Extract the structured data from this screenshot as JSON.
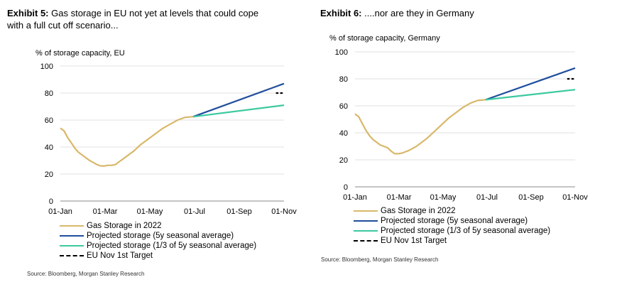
{
  "colors": {
    "gas_storage": "#D8B86A",
    "projected_5y": "#1F4E9C",
    "projected_third": "#3CC9A0",
    "target": "#000000"
  },
  "chart_data": [
    {
      "type": "line",
      "exhibit_label": "Exhibit 5:",
      "title": "Gas storage in EU not yet at levels that could cope with a full cut off scenario...",
      "ylabel": "% of storage capacity, EU",
      "xlabel": "",
      "x_ticks": [
        "01-Jan",
        "01-Mar",
        "01-May",
        "01-Jul",
        "01-Sep",
        "01-Nov"
      ],
      "y_ticks": [
        0,
        20,
        40,
        60,
        80,
        100
      ],
      "xlim": [
        0,
        305
      ],
      "ylim": [
        0,
        100
      ],
      "grid": "horizontal",
      "legend_position": "bottom",
      "series": [
        {
          "name": "Gas Storage in 2022",
          "color_key": "gas_storage",
          "dash": false,
          "x": [
            0,
            5,
            10,
            15,
            20,
            25,
            30,
            35,
            40,
            45,
            50,
            55,
            60,
            65,
            70,
            75,
            80,
            85,
            90,
            95,
            100,
            110,
            120,
            130,
            140,
            150,
            160,
            170,
            181
          ],
          "y": [
            54,
            52,
            47,
            43,
            39,
            36,
            34,
            32,
            30,
            28.5,
            27,
            26,
            26,
            26.5,
            26.5,
            27,
            29,
            31,
            33,
            35,
            37,
            42,
            46,
            50,
            54,
            57,
            60,
            62,
            62.5
          ]
        },
        {
          "name": "Projected storage (5y seasonal average)",
          "color_key": "projected_5y",
          "dash": false,
          "x": [
            181,
            305
          ],
          "y": [
            62.5,
            87
          ]
        },
        {
          "name": "Projected storage (1/3 of 5y seasonal average)",
          "color_key": "projected_third",
          "dash": false,
          "x": [
            181,
            305
          ],
          "y": [
            62.5,
            71
          ]
        },
        {
          "name": "EU Nov 1st Target",
          "color_key": "target",
          "dash": true,
          "x": [
            294,
            305
          ],
          "y": [
            80,
            80
          ]
        }
      ],
      "source": "Source: Bloomberg, Morgan Stanley Research"
    },
    {
      "type": "line",
      "exhibit_label": "Exhibit 6:",
      "title": "....nor are they in Germany",
      "ylabel": "% of storage capacity, Germany",
      "xlabel": "",
      "x_ticks": [
        "01-Jan",
        "01-Mar",
        "01-May",
        "01-Jul",
        "01-Sep",
        "01-Nov"
      ],
      "y_ticks": [
        0,
        20,
        40,
        60,
        80,
        100
      ],
      "xlim": [
        0,
        305
      ],
      "ylim": [
        0,
        100
      ],
      "grid": "horizontal",
      "legend_position": "bottom",
      "series": [
        {
          "name": "Gas Storage in 2022",
          "color_key": "gas_storage",
          "dash": false,
          "x": [
            0,
            5,
            10,
            15,
            20,
            25,
            30,
            35,
            40,
            45,
            50,
            55,
            60,
            65,
            70,
            75,
            80,
            85,
            90,
            95,
            100,
            110,
            120,
            130,
            140,
            150,
            160,
            170,
            181
          ],
          "y": [
            54,
            52,
            47,
            42,
            38,
            35,
            33,
            31,
            30,
            29,
            26.5,
            24.5,
            24.5,
            25,
            26,
            27,
            28.5,
            30,
            32,
            34,
            36,
            41,
            46,
            51,
            55,
            59,
            62,
            64,
            64.5
          ]
        },
        {
          "name": "Projected storage (5y seasonal average)",
          "color_key": "projected_5y",
          "dash": false,
          "x": [
            181,
            305
          ],
          "y": [
            64.5,
            88
          ]
        },
        {
          "name": "Projected storage (1/3 of 5y seasonal average)",
          "color_key": "projected_third",
          "dash": false,
          "x": [
            181,
            305
          ],
          "y": [
            64.5,
            72
          ]
        },
        {
          "name": "EU Nov 1st Target",
          "color_key": "target",
          "dash": true,
          "x": [
            294,
            305
          ],
          "y": [
            80,
            80
          ]
        }
      ],
      "source": "Source: Bloomberg, Morgan Stanley Research"
    }
  ]
}
